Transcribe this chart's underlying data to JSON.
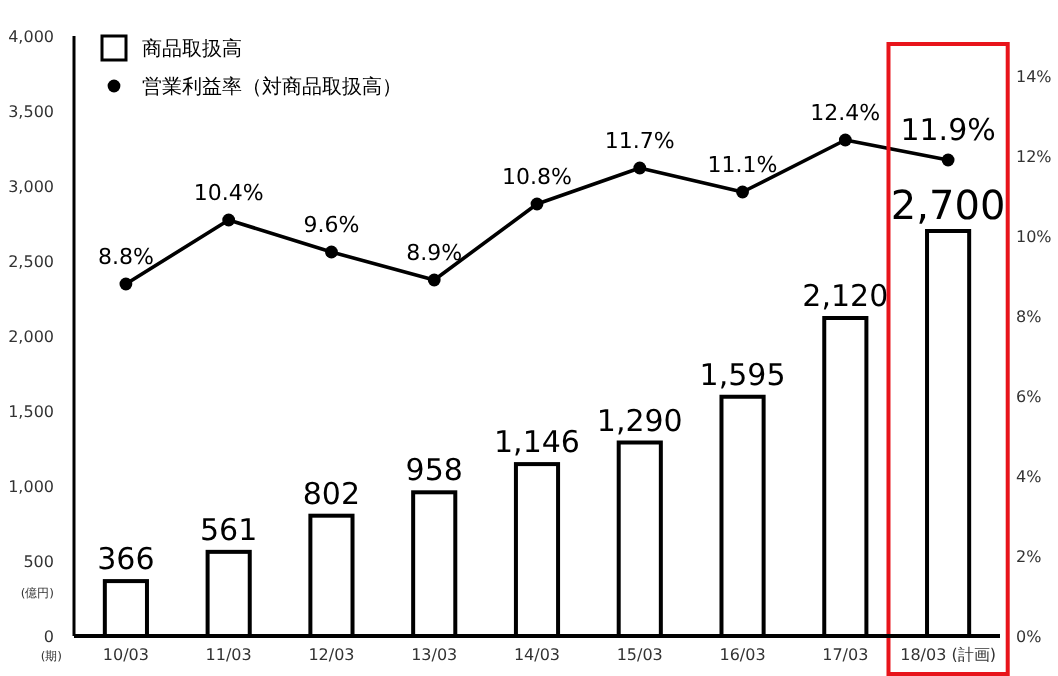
{
  "chart_data": {
    "type": "bar",
    "xlabel": "(期)",
    "ylabel": "(億円)",
    "categories": [
      "10/03",
      "11/03",
      "12/03",
      "13/03",
      "14/03",
      "15/03",
      "16/03",
      "17/03",
      "18/03 (計画)"
    ],
    "series": [
      {
        "name": "商品取扱高",
        "color": "#ffffff",
        "values": [
          366,
          561,
          802,
          958,
          1146,
          1290,
          1595,
          2120,
          2700
        ],
        "value_labels": [
          "366",
          "561",
          "802",
          "958",
          "1,146",
          "1,290",
          "1,595",
          "2,120",
          "2,700"
        ]
      },
      {
        "name": "営業利益率（対商品取扱高）",
        "type": "line",
        "axis": "y2",
        "color": "#000000",
        "marker": "circle",
        "values": [
          8.8,
          10.4,
          9.6,
          8.9,
          10.8,
          11.7,
          11.1,
          12.4,
          11.9
        ],
        "value_labels": [
          "8.8%",
          "10.4%",
          "9.6%",
          "8.9%",
          "10.8%",
          "11.7%",
          "11.1%",
          "12.4%",
          "11.9%"
        ]
      }
    ],
    "ylim": [
      0,
      4000
    ],
    "yticks": [
      0,
      {
        "value": 500,
        "label": "500"
      },
      {
        "value": 1000,
        "label": "1,000"
      },
      {
        "value": 1500,
        "label": "1,500"
      },
      {
        "value": 2000,
        "label": "2,000"
      },
      {
        "value": 2500,
        "label": "2,500"
      },
      {
        "value": 3000,
        "label": "3,000"
      },
      {
        "value": 3500,
        "label": "3,500"
      },
      {
        "value": 4000,
        "label": "4,000"
      }
    ],
    "y2lim": [
      0,
      15
    ],
    "y2ticks": [
      {
        "value": 0,
        "label": "0%"
      },
      {
        "value": 2,
        "label": "2%"
      },
      {
        "value": 4,
        "label": "4%"
      },
      {
        "value": 6,
        "label": "6%"
      },
      {
        "value": 8,
        "label": "8%"
      },
      {
        "value": 10,
        "label": "10%"
      },
      {
        "value": 12,
        "label": "12%"
      },
      {
        "value": 14,
        "label": "14%"
      }
    ],
    "legend": "top left",
    "grid": false
  }
}
